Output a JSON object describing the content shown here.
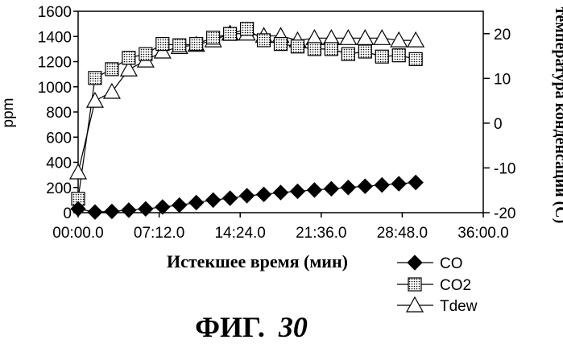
{
  "chart_data": {
    "type": "line",
    "xlabel": "Истекшее время (мин)",
    "ylabel": "ppm",
    "y2label": "температура конденсации (С)",
    "x_ticks": [
      "00:00.0",
      "07:12.0",
      "14:24.0",
      "21:36.0",
      "28:48.0",
      "36:00.0"
    ],
    "xlim_minutes": [
      0,
      36
    ],
    "ylim": [
      0,
      1600
    ],
    "y_ticks": [
      "0",
      "200",
      "400",
      "600",
      "800",
      "1000",
      "1200",
      "1400",
      "1600"
    ],
    "y2lim": [
      -20,
      25
    ],
    "y2_ticks": [
      "-20",
      "-10",
      "0",
      "10",
      "20"
    ],
    "grid": false,
    "legend_position": "bottom-right",
    "series": [
      {
        "name": "CO",
        "axis": "left",
        "marker": "diamond",
        "x_minutes": [
          0,
          1.5,
          3,
          4.5,
          6,
          7.5,
          9,
          10.5,
          12,
          13.5,
          15,
          16.5,
          18,
          19.5,
          21,
          22.5,
          24,
          25.5,
          27,
          28.5,
          30
        ],
        "values": [
          30,
          5,
          10,
          20,
          30,
          45,
          60,
          80,
          100,
          115,
          135,
          145,
          160,
          170,
          180,
          190,
          200,
          210,
          220,
          230,
          240
        ]
      },
      {
        "name": "CO2",
        "axis": "left",
        "marker": "dotted-square",
        "x_minutes": [
          0,
          1.5,
          3,
          4.5,
          6,
          7.5,
          9,
          10.5,
          12,
          13.5,
          15,
          16.5,
          18,
          19.5,
          21,
          22.5,
          24,
          25.5,
          27,
          28.5,
          30
        ],
        "values": [
          110,
          1070,
          1140,
          1230,
          1260,
          1340,
          1330,
          1340,
          1390,
          1420,
          1460,
          1370,
          1340,
          1320,
          1300,
          1300,
          1260,
          1280,
          1240,
          1250,
          1220
        ]
      },
      {
        "name": "Tdew",
        "axis": "right",
        "marker": "triangle",
        "x_minutes": [
          0,
          1.5,
          3,
          4.5,
          6,
          7.5,
          9,
          10.5,
          12,
          13.5,
          15,
          16.5,
          18,
          19.5,
          21,
          22.5,
          24,
          25.5,
          27,
          28.5,
          30
        ],
        "values": [
          -11,
          5,
          7,
          12,
          14,
          16,
          17,
          17.5,
          18.5,
          20,
          20,
          19.5,
          19.5,
          18.5,
          19,
          19,
          19,
          19,
          19,
          18.5,
          18.5
        ]
      }
    ]
  },
  "caption": {
    "prefix": "ФИГ.",
    "number": "30"
  }
}
